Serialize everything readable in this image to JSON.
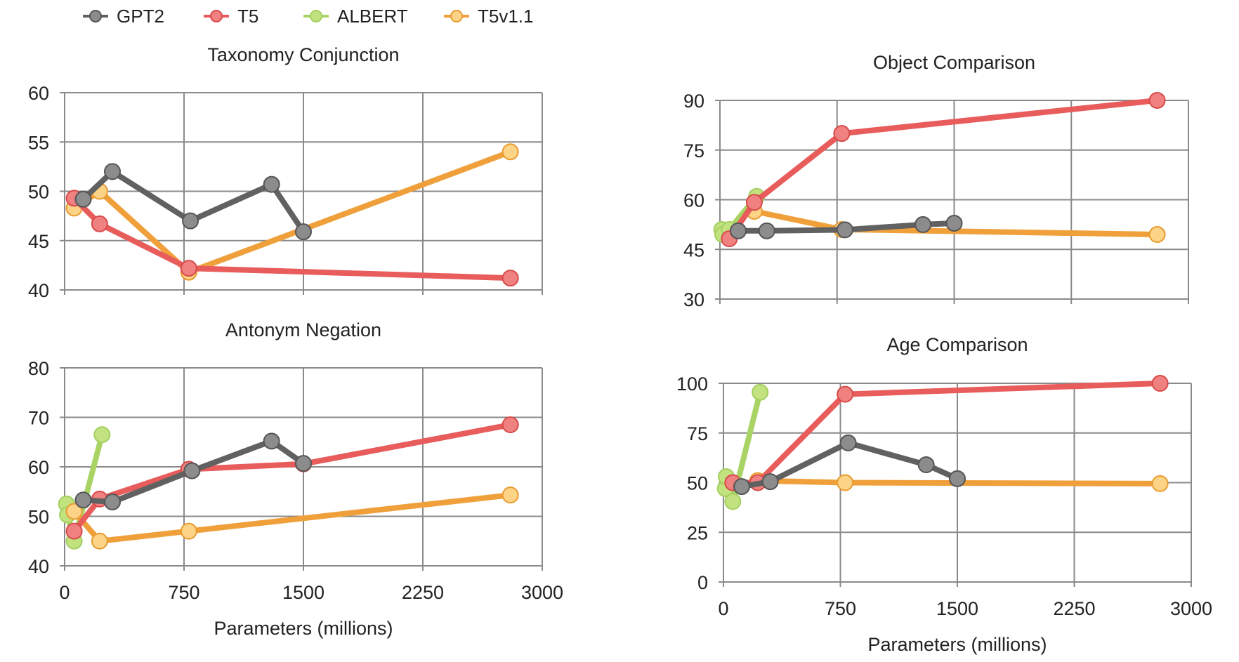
{
  "legend": {
    "items": [
      {
        "name": "GPT2",
        "line": "#616161",
        "fill": "#8c8c8c",
        "edge": "#555555"
      },
      {
        "name": "T5",
        "line": "#e85c5c",
        "fill": "#f08181",
        "edge": "#d84a4a"
      },
      {
        "name": "ALBERT",
        "line": "#a9d465",
        "fill": "#c1e27e",
        "edge": "#a4cf62"
      },
      {
        "name": "T5v1.1",
        "line": "#f0a03a",
        "fill": "#fdd387",
        "edge": "#e89b2e"
      }
    ]
  },
  "chart_data": [
    {
      "type": "line",
      "title": "Taxonomy Conjunction",
      "xlabel": "",
      "ylabel": "",
      "xlim": [
        0,
        3000
      ],
      "ylim": [
        40,
        60
      ],
      "xticks": [],
      "yticks": [
        "40",
        "45",
        "50",
        "55",
        "60"
      ],
      "grid": true,
      "series": [
        {
          "name": "T5v1.1",
          "points": [
            [
              60,
              48.3
            ],
            [
              220,
              50
            ],
            [
              780,
              41.8
            ],
            [
              2800,
              54
            ]
          ]
        },
        {
          "name": "T5",
          "points": [
            [
              60,
              49.3
            ],
            [
              220,
              46.7
            ],
            [
              780,
              42.2
            ],
            [
              2800,
              41.2
            ]
          ]
        },
        {
          "name": "GPT2",
          "points": [
            [
              117,
              49.2
            ],
            [
              300,
              52
            ],
            [
              790,
              47
            ],
            [
              1300,
              50.7
            ],
            [
              1500,
              45.9
            ]
          ]
        }
      ]
    },
    {
      "type": "line",
      "title": "Antonym Negation",
      "xlabel": "Parameters (millions)",
      "ylabel": "",
      "xlim": [
        0,
        3000
      ],
      "ylim": [
        40,
        80
      ],
      "xticks": [
        "0",
        "750",
        "1500",
        "2250",
        "3000"
      ],
      "yticks": [
        "40",
        "50",
        "60",
        "70",
        "80"
      ],
      "grid": true,
      "series": [
        {
          "name": "ALBERT",
          "points": [
            [
              12,
              52.5
            ],
            [
              18,
              50.3
            ],
            [
              60,
              45
            ],
            [
              235,
              66.5
            ]
          ]
        },
        {
          "name": "T5v1.1",
          "points": [
            [
              60,
              51
            ],
            [
              220,
              45
            ],
            [
              780,
              47
            ],
            [
              2800,
              54.3
            ]
          ]
        },
        {
          "name": "T5",
          "points": [
            [
              60,
              47
            ],
            [
              220,
              53.5
            ],
            [
              780,
              59.5
            ],
            [
              1500,
              60.6
            ],
            [
              2800,
              68.5
            ]
          ]
        },
        {
          "name": "GPT2",
          "points": [
            [
              117,
              53.3
            ],
            [
              300,
              52.9
            ],
            [
              800,
              59.2
            ],
            [
              1300,
              65.2
            ],
            [
              1500,
              60.7
            ]
          ]
        }
      ]
    },
    {
      "type": "line",
      "title": "Object Comparison",
      "xlabel": "",
      "ylabel": "",
      "xlim": [
        0,
        3000
      ],
      "ylim": [
        30,
        90
      ],
      "xticks": [],
      "yticks": [
        "30",
        "45",
        "60",
        "75",
        "90"
      ],
      "grid": true,
      "series": [
        {
          "name": "ALBERT",
          "points": [
            [
              12,
              51
            ],
            [
              18,
              49.5
            ],
            [
              60,
              51
            ],
            [
              235,
              61
            ]
          ]
        },
        {
          "name": "T5v1.1",
          "points": [
            [
              220,
              56.5
            ],
            [
              780,
              51
            ],
            [
              2800,
              49.5
            ]
          ]
        },
        {
          "name": "T5",
          "points": [
            [
              60,
              48.2
            ],
            [
              220,
              59.2
            ],
            [
              780,
              80
            ],
            [
              2800,
              90
            ]
          ]
        },
        {
          "name": "GPT2",
          "points": [
            [
              117,
              50.6
            ],
            [
              300,
              50.6
            ],
            [
              800,
              50.9
            ],
            [
              1300,
              52.5
            ],
            [
              1500,
              52.9
            ]
          ]
        }
      ]
    },
    {
      "type": "line",
      "title": "Age Comparison",
      "xlabel": "Parameters (millions)",
      "ylabel": "",
      "xlim": [
        0,
        3000
      ],
      "ylim": [
        0,
        100
      ],
      "xticks": [
        "0",
        "750",
        "1500",
        "2250",
        "3000"
      ],
      "yticks": [
        "0",
        "25",
        "50",
        "75",
        "100"
      ],
      "grid": true,
      "series": [
        {
          "name": "ALBERT",
          "points": [
            [
              12,
              47
            ],
            [
              18,
              53
            ],
            [
              60,
              40.5
            ],
            [
              235,
              95.5
            ]
          ]
        },
        {
          "name": "T5v1.1",
          "points": [
            [
              220,
              51
            ],
            [
              780,
              50
            ],
            [
              2800,
              49.5
            ]
          ]
        },
        {
          "name": "T5",
          "points": [
            [
              60,
              50
            ],
            [
              220,
              50
            ],
            [
              780,
              94.5
            ],
            [
              2800,
              100
            ]
          ]
        },
        {
          "name": "GPT2",
          "points": [
            [
              117,
              48
            ],
            [
              300,
              50.5
            ],
            [
              800,
              70
            ],
            [
              1300,
              59
            ],
            [
              1500,
              52
            ]
          ]
        }
      ]
    }
  ]
}
